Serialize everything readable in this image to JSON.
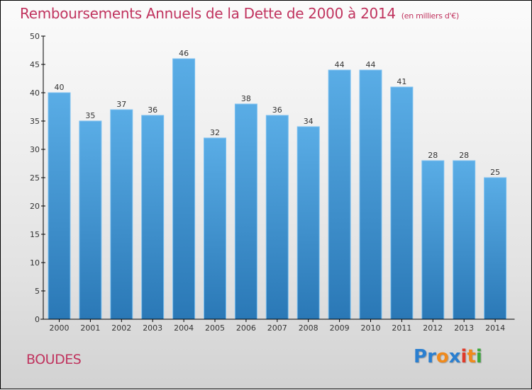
{
  "header": {
    "title": "Remboursements Annuels de la Dette de 2000 à 2014",
    "subtitle": "(en milliers d'€)"
  },
  "footer": {
    "commune": "BOUDES",
    "logo": {
      "letters": [
        "P",
        "r",
        "o",
        "x",
        "i",
        "t",
        "i"
      ],
      "colors": [
        "#2a7fd0",
        "#2a7fd0",
        "#f08a1c",
        "#2a7fd0",
        "#e03a2a",
        "#f08a1c",
        "#3aa83a"
      ]
    }
  },
  "colors": {
    "bar_top": "#5aade6",
    "bar_bottom": "#2a78b6",
    "bar_edge": "#7cc0f0",
    "title": "#c0335e",
    "axis": "#000000"
  },
  "chart_data": {
    "type": "bar",
    "title": "Remboursements Annuels de la Dette de 2000 à 2014",
    "subtitle": "(en milliers d'€)",
    "xlabel": "",
    "ylabel": "",
    "categories": [
      "2000",
      "2001",
      "2002",
      "2003",
      "2004",
      "2005",
      "2006",
      "2007",
      "2008",
      "2009",
      "2010",
      "2011",
      "2012",
      "2013",
      "2014"
    ],
    "values": [
      40,
      35,
      37,
      36,
      46,
      32,
      38,
      36,
      34,
      44,
      44,
      41,
      28,
      28,
      25
    ],
    "ylim": [
      0,
      50
    ],
    "yticks": [
      0,
      5,
      10,
      15,
      20,
      25,
      30,
      35,
      40,
      45,
      50
    ],
    "grid": false,
    "data_labels": true,
    "legend": "none"
  }
}
